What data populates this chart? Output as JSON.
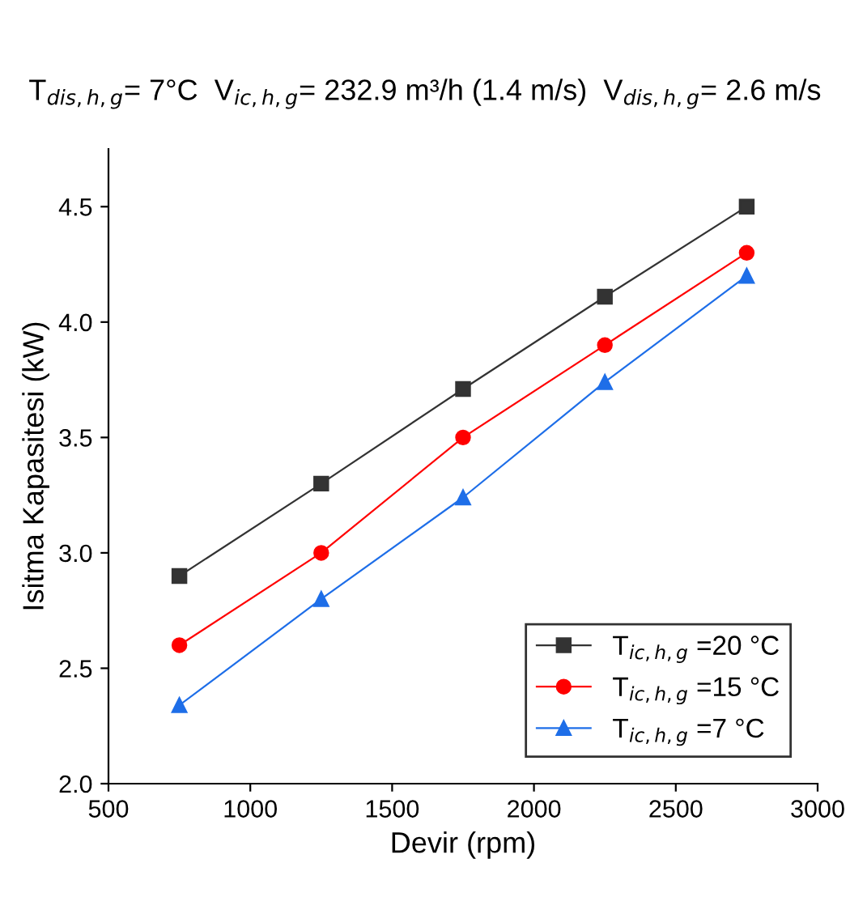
{
  "chart_data": {
    "type": "line",
    "title": "T$_{dis,h,g}$= 7°C  V$_{ic,h,g}$= 232.9 m³/h (1.4 m/s)  V$_{dis,h,g}$= 2.6 m/s",
    "xlabel": "Devir (rpm)",
    "ylabel": "Isitma Kapasitesi (kW)",
    "x": [
      750,
      1250,
      1750,
      2250,
      2750
    ],
    "series": [
      {
        "name": "T$_{ic,h,g}$ =20 °C",
        "color": "#333333",
        "marker": "square",
        "values": [
          2.9,
          3.3,
          3.71,
          4.11,
          4.5
        ]
      },
      {
        "name": "T$_{ic,h,g}$ =15 °C",
        "color": "#ff0000",
        "marker": "circle",
        "values": [
          2.6,
          3.0,
          3.5,
          3.9,
          4.3
        ]
      },
      {
        "name": "T$_{ic,h,g}$ =7 °C",
        "color": "#1e6ee8",
        "marker": "triangle",
        "values": [
          2.34,
          2.8,
          3.24,
          3.74,
          4.2
        ]
      }
    ],
    "xlim": [
      500,
      3000
    ],
    "xticks": [
      500,
      1000,
      1500,
      2000,
      2500,
      3000
    ],
    "ylim": [
      2.0,
      4.75
    ],
    "yticks": [
      {
        "value": 2.0,
        "label": "2.0"
      },
      {
        "value": 2.5,
        "label": "2.5"
      },
      {
        "value": 3.0,
        "label": "3.0"
      },
      {
        "value": 3.5,
        "label": "3.5"
      },
      {
        "value": 4.0,
        "label": "4.0"
      },
      {
        "value": 4.5,
        "label": "4.5"
      }
    ],
    "legend": "bottom right",
    "grid": false,
    "line_style": "solid"
  }
}
